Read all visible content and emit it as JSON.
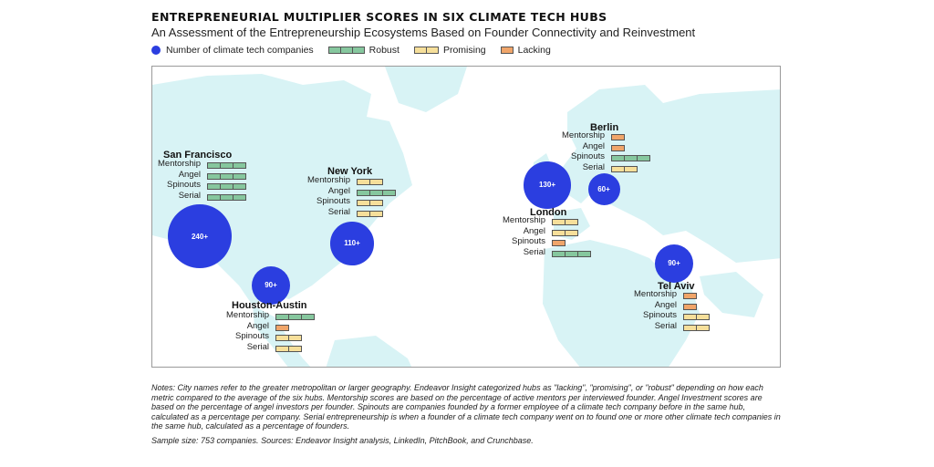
{
  "title": "ENTREPRENEURIAL MULTIPLIER SCORES IN SIX CLIMATE TECH HUBS",
  "subtitle": "An Assessment of the Entrepreneurship Ecosystems Based on Founder Connectivity and Reinvestment",
  "legend": {
    "companies": "Number of climate tech companies",
    "robust": "Robust",
    "promising": "Promising",
    "lacking": "Lacking"
  },
  "colors": {
    "robust": "#86c79e",
    "promising": "#f6df9a",
    "lacking": "#f0a56a",
    "bubble": "#2b3ee0",
    "land": "#d8f3f5"
  },
  "scores": {
    "robust": 3,
    "promising": 2,
    "lacking": 1
  },
  "hubs": [
    {
      "name": "San Francisco",
      "companies": "240+",
      "companies_value": 240,
      "metrics": [
        {
          "label": "Mentorship",
          "level": "robust"
        },
        {
          "label": "Angel",
          "level": "robust"
        },
        {
          "label": "Spinouts",
          "level": "robust"
        },
        {
          "label": "Serial",
          "level": "robust"
        }
      ]
    },
    {
      "name": "New York",
      "companies": "110+",
      "companies_value": 110,
      "metrics": [
        {
          "label": "Mentorship",
          "level": "promising"
        },
        {
          "label": "Angel",
          "level": "robust"
        },
        {
          "label": "Spinouts",
          "level": "promising"
        },
        {
          "label": "Serial",
          "level": "promising"
        }
      ]
    },
    {
      "name": "Houston-Austin",
      "companies": "90+",
      "companies_value": 90,
      "metrics": [
        {
          "label": "Mentorship",
          "level": "robust"
        },
        {
          "label": "Angel",
          "level": "lacking"
        },
        {
          "label": "Spinouts",
          "level": "promising"
        },
        {
          "label": "Serial",
          "level": "promising"
        }
      ]
    },
    {
      "name": "London",
      "companies": "130+",
      "companies_value": 130,
      "metrics": [
        {
          "label": "Mentorship",
          "level": "promising"
        },
        {
          "label": "Angel",
          "level": "promising"
        },
        {
          "label": "Spinouts",
          "level": "lacking"
        },
        {
          "label": "Serial",
          "level": "robust"
        }
      ]
    },
    {
      "name": "Berlin",
      "companies": "60+",
      "companies_value": 60,
      "metrics": [
        {
          "label": "Mentorship",
          "level": "lacking"
        },
        {
          "label": "Angel",
          "level": "lacking"
        },
        {
          "label": "Spinouts",
          "level": "robust"
        },
        {
          "label": "Serial",
          "level": "promising"
        }
      ]
    },
    {
      "name": "Tel Aviv",
      "companies": "90+",
      "companies_value": 90,
      "metrics": [
        {
          "label": "Mentorship",
          "level": "lacking"
        },
        {
          "label": "Angel",
          "level": "lacking"
        },
        {
          "label": "Spinouts",
          "level": "promising"
        },
        {
          "label": "Serial",
          "level": "promising"
        }
      ]
    }
  ],
  "notes": {
    "main": "Notes: City names refer to the greater metropolitan or larger geography. Endeavor Insight categorized hubs as \"lacking\", \"promising\", or \"robust\" depending on how each metric compared to the average of the six hubs. Mentorship scores are based on the percentage of active mentors per interviewed founder. Angel Investment scores are based on the percentage of angel investors per founder. Spinouts are companies founded by a former employee of a climate tech company before in the same hub, calculated as a percentage per company. Serial entrepreneurship is when a founder of a climate tech company went on to found one or more other climate tech companies in the same hub, calculated as a percentage of founders.",
    "sample": "Sample size: 753 companies. Sources: Endeavor Insight analysis, LinkedIn, PitchBook, and Crunchbase."
  }
}
